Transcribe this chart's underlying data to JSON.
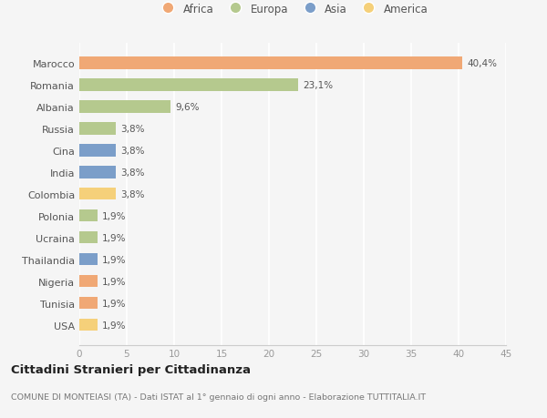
{
  "categories": [
    "Marocco",
    "Romania",
    "Albania",
    "Russia",
    "Cina",
    "India",
    "Colombia",
    "Polonia",
    "Ucraina",
    "Thailandia",
    "Nigeria",
    "Tunisia",
    "USA"
  ],
  "values": [
    40.4,
    23.1,
    9.6,
    3.8,
    3.8,
    3.8,
    3.8,
    1.9,
    1.9,
    1.9,
    1.9,
    1.9,
    1.9
  ],
  "labels": [
    "40,4%",
    "23,1%",
    "9,6%",
    "3,8%",
    "3,8%",
    "3,8%",
    "3,8%",
    "1,9%",
    "1,9%",
    "1,9%",
    "1,9%",
    "1,9%",
    "1,9%"
  ],
  "continents": [
    "Africa",
    "Europa",
    "Europa",
    "Europa",
    "Asia",
    "Asia",
    "America",
    "Europa",
    "Europa",
    "Asia",
    "Africa",
    "Africa",
    "America"
  ],
  "colors": {
    "Africa": "#F0A875",
    "Europa": "#B5C98E",
    "Asia": "#7B9EC9",
    "America": "#F5D07A"
  },
  "legend_order": [
    "Africa",
    "Europa",
    "Asia",
    "America"
  ],
  "title": "Cittadini Stranieri per Cittadinanza",
  "subtitle": "COMUNE DI MONTEIASI (TA) - Dati ISTAT al 1° gennaio di ogni anno - Elaborazione TUTTITALIA.IT",
  "xlim": [
    0,
    45
  ],
  "xticks": [
    0,
    5,
    10,
    15,
    20,
    25,
    30,
    35,
    40,
    45
  ],
  "background_color": "#f5f5f5",
  "grid_color": "#ffffff",
  "bar_height": 0.55
}
